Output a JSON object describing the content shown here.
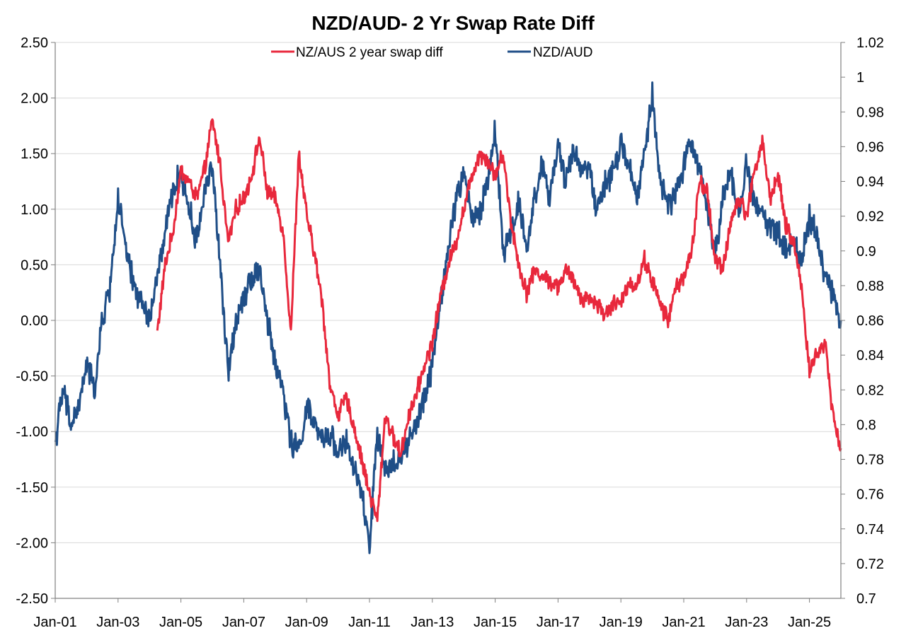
{
  "chart_data": {
    "type": "line",
    "title": "NZD/AUD- 2 Yr Swap Rate Diff",
    "xlabel": "",
    "ylabel_left": "",
    "ylabel_right": "",
    "x_range": [
      2001.0,
      2026.0
    ],
    "x_ticks": [
      {
        "label": "Jan-01",
        "x": 2001
      },
      {
        "label": "Jan-03",
        "x": 2003
      },
      {
        "label": "Jan-05",
        "x": 2005
      },
      {
        "label": "Jan-07",
        "x": 2007
      },
      {
        "label": "Jan-09",
        "x": 2009
      },
      {
        "label": "Jan-11",
        "x": 2011
      },
      {
        "label": "Jan-13",
        "x": 2013
      },
      {
        "label": "Jan-15",
        "x": 2015
      },
      {
        "label": "Jan-17",
        "x": 2017
      },
      {
        "label": "Jan-19",
        "x": 2019
      },
      {
        "label": "Jan-21",
        "x": 2021
      },
      {
        "label": "Jan-23",
        "x": 2023
      },
      {
        "label": "Jan-25",
        "x": 2025
      }
    ],
    "y_left": {
      "min": -2.5,
      "max": 2.5,
      "ticks": [
        "2.50",
        "2.00",
        "1.50",
        "1.00",
        "0.50",
        "0.00",
        "-0.50",
        "-1.00",
        "-1.50",
        "-2.00",
        "-2.50"
      ]
    },
    "y_right": {
      "min": 0.7,
      "max": 1.02,
      "ticks": [
        "1.02",
        "1",
        "0.98",
        "0.96",
        "0.94",
        "0.92",
        "0.9",
        "0.88",
        "0.86",
        "0.84",
        "0.82",
        "0.8",
        "0.78",
        "0.76",
        "0.74",
        "0.72",
        "0.7"
      ]
    },
    "grid": "horizontal",
    "legend_position": "top-center",
    "series": [
      {
        "name": "NZ/AUS 2 year swap diff",
        "axis": "left",
        "color": "#e8283c",
        "x": [
          2004.25,
          2004.5,
          2004.75,
          2005.0,
          2005.25,
          2005.5,
          2005.75,
          2006.0,
          2006.25,
          2006.5,
          2006.75,
          2007.0,
          2007.25,
          2007.5,
          2007.75,
          2008.0,
          2008.25,
          2008.5,
          2008.75,
          2009.0,
          2009.25,
          2009.5,
          2009.75,
          2010.0,
          2010.25,
          2010.5,
          2010.75,
          2011.0,
          2011.25,
          2011.5,
          2011.75,
          2012.0,
          2012.25,
          2012.5,
          2012.75,
          2013.0,
          2013.25,
          2013.5,
          2013.75,
          2014.0,
          2014.25,
          2014.5,
          2014.75,
          2015.0,
          2015.25,
          2015.5,
          2015.75,
          2016.0,
          2016.25,
          2016.5,
          2016.75,
          2017.0,
          2017.25,
          2017.5,
          2017.75,
          2018.0,
          2018.25,
          2018.5,
          2018.75,
          2019.0,
          2019.25,
          2019.5,
          2019.75,
          2020.0,
          2020.25,
          2020.5,
          2020.75,
          2021.0,
          2021.25,
          2021.5,
          2021.75,
          2022.0,
          2022.25,
          2022.5,
          2022.75,
          2023.0,
          2023.25,
          2023.5,
          2023.75,
          2024.0,
          2024.25,
          2024.5,
          2024.75,
          2025.0,
          2025.25,
          2025.5,
          2025.75,
          2026.0
        ],
        "values": [
          -0.1,
          0.5,
          0.8,
          1.35,
          1.25,
          1.1,
          1.35,
          1.8,
          1.4,
          0.7,
          1.0,
          1.1,
          1.3,
          1.65,
          1.15,
          1.1,
          0.8,
          -0.1,
          1.5,
          0.95,
          0.6,
          0.15,
          -0.6,
          -0.85,
          -0.7,
          -0.95,
          -1.25,
          -1.55,
          -1.8,
          -0.85,
          -1.05,
          -1.2,
          -0.85,
          -0.65,
          -0.4,
          -0.2,
          0.2,
          0.5,
          0.7,
          1.0,
          1.3,
          1.5,
          1.45,
          1.3,
          1.5,
          0.9,
          0.5,
          0.25,
          0.45,
          0.4,
          0.35,
          0.3,
          0.45,
          0.35,
          0.2,
          0.2,
          0.15,
          0.05,
          0.15,
          0.15,
          0.35,
          0.3,
          0.55,
          0.35,
          0.15,
          0.0,
          0.3,
          0.4,
          0.6,
          1.25,
          1.15,
          0.55,
          0.45,
          0.9,
          1.1,
          0.95,
          1.35,
          1.6,
          1.1,
          1.3,
          0.85,
          0.7,
          0.3,
          -0.45,
          -0.3,
          -0.2,
          -0.85,
          -1.15
        ]
      },
      {
        "name": "NZD/AUD",
        "axis": "right",
        "color": "#1f4e87",
        "x": [
          2001.0,
          2001.25,
          2001.5,
          2001.75,
          2002.0,
          2002.25,
          2002.5,
          2002.75,
          2003.0,
          2003.25,
          2003.5,
          2003.75,
          2004.0,
          2004.25,
          2004.5,
          2004.75,
          2005.0,
          2005.25,
          2005.5,
          2005.75,
          2006.0,
          2006.25,
          2006.5,
          2006.75,
          2007.0,
          2007.25,
          2007.5,
          2007.75,
          2008.0,
          2008.25,
          2008.5,
          2008.75,
          2009.0,
          2009.25,
          2009.5,
          2009.75,
          2010.0,
          2010.25,
          2010.5,
          2010.75,
          2011.0,
          2011.25,
          2011.5,
          2011.75,
          2012.0,
          2012.25,
          2012.5,
          2012.75,
          2013.0,
          2013.25,
          2013.5,
          2013.75,
          2014.0,
          2014.25,
          2014.5,
          2014.75,
          2015.0,
          2015.25,
          2015.5,
          2015.75,
          2016.0,
          2016.25,
          2016.5,
          2016.75,
          2017.0,
          2017.25,
          2017.5,
          2017.75,
          2018.0,
          2018.25,
          2018.5,
          2018.75,
          2019.0,
          2019.25,
          2019.5,
          2019.75,
          2020.0,
          2020.25,
          2020.5,
          2020.75,
          2021.0,
          2021.25,
          2021.5,
          2021.75,
          2022.0,
          2022.25,
          2022.5,
          2022.75,
          2023.0,
          2023.25,
          2023.5,
          2023.75,
          2024.0,
          2024.25,
          2024.5,
          2024.75,
          2025.0,
          2025.25,
          2025.5,
          2025.75,
          2026.0
        ],
        "values": [
          0.79,
          0.82,
          0.8,
          0.81,
          0.835,
          0.82,
          0.86,
          0.88,
          0.93,
          0.9,
          0.88,
          0.87,
          0.86,
          0.885,
          0.91,
          0.935,
          0.945,
          0.925,
          0.905,
          0.935,
          0.95,
          0.89,
          0.83,
          0.86,
          0.875,
          0.885,
          0.89,
          0.86,
          0.835,
          0.82,
          0.79,
          0.785,
          0.81,
          0.8,
          0.79,
          0.795,
          0.785,
          0.79,
          0.775,
          0.76,
          0.73,
          0.795,
          0.77,
          0.78,
          0.78,
          0.79,
          0.8,
          0.815,
          0.835,
          0.87,
          0.9,
          0.93,
          0.945,
          0.92,
          0.92,
          0.94,
          0.97,
          0.9,
          0.91,
          0.93,
          0.9,
          0.93,
          0.95,
          0.93,
          0.96,
          0.94,
          0.96,
          0.945,
          0.95,
          0.92,
          0.94,
          0.945,
          0.96,
          0.95,
          0.93,
          0.955,
          0.99,
          0.94,
          0.925,
          0.935,
          0.95,
          0.96,
          0.95,
          0.925,
          0.9,
          0.93,
          0.945,
          0.92,
          0.95,
          0.93,
          0.92,
          0.915,
          0.91,
          0.9,
          0.905,
          0.895,
          0.92,
          0.91,
          0.885,
          0.875,
          0.86
        ]
      }
    ]
  }
}
